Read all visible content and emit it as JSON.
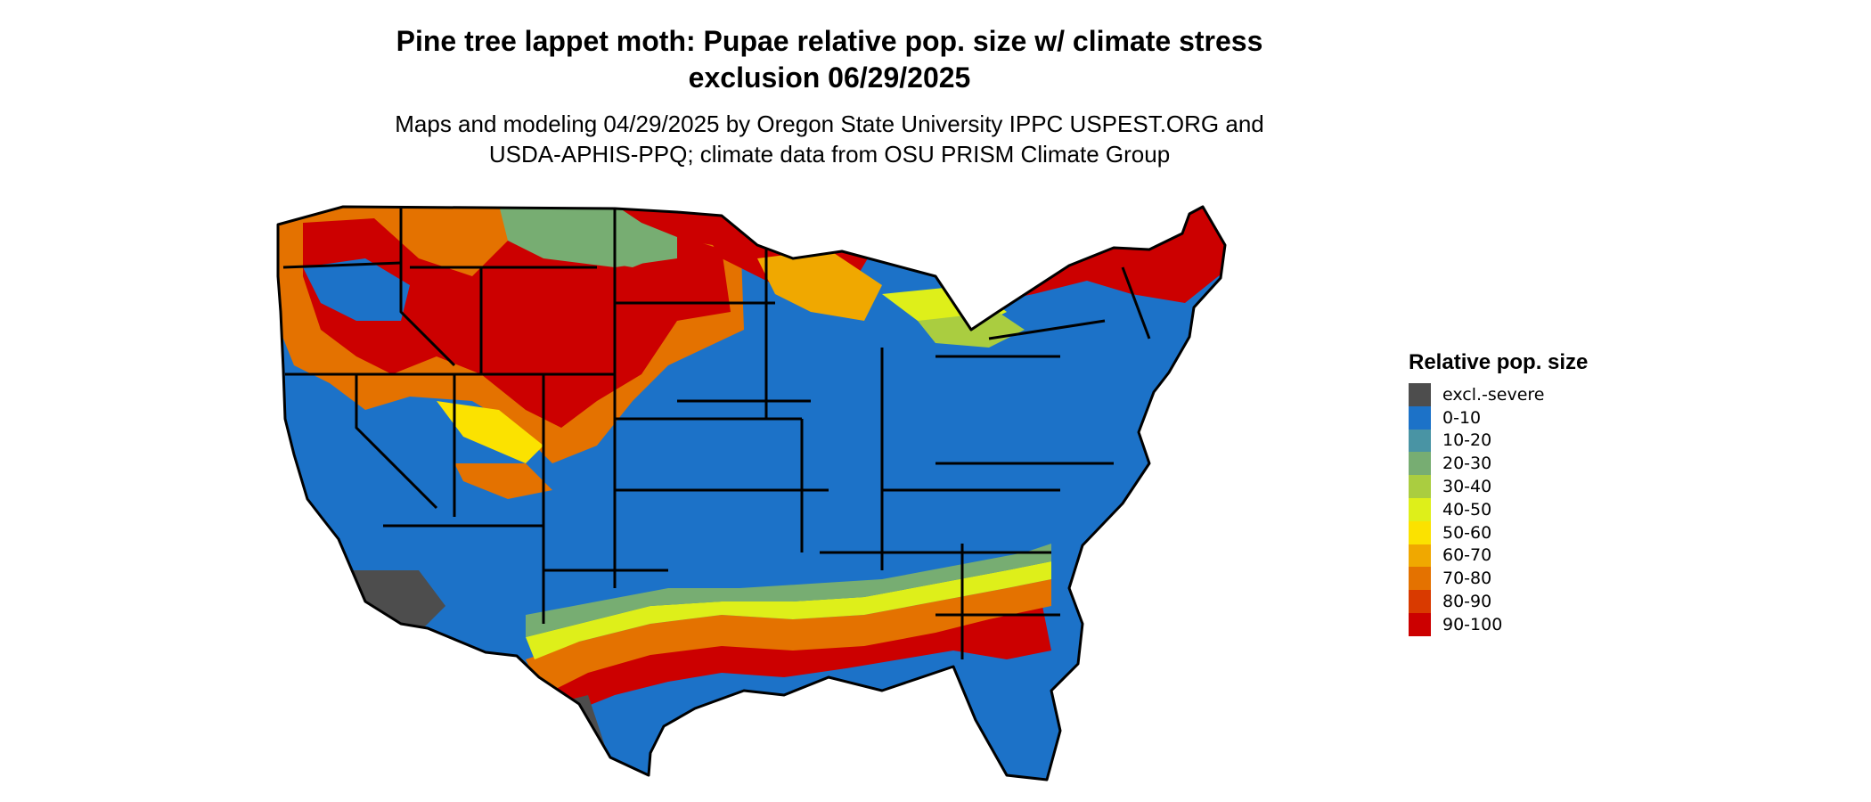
{
  "title": {
    "line1": "Pine tree lappet moth: Pupae relative pop. size w/ climate stress",
    "line2": "exclusion 06/29/2025"
  },
  "subtitle": {
    "line1": "Maps and modeling 04/29/2025 by Oregon State University IPPC USPEST.ORG and",
    "line2": "USDA-APHIS-PPQ; climate data from OSU PRISM Climate Group"
  },
  "legend": {
    "title": "Relative pop. size",
    "items": [
      {
        "label": "excl.-severe",
        "color": "#4d4d4d"
      },
      {
        "label": "0-10",
        "color": "#1c72c8"
      },
      {
        "label": "10-20",
        "color": "#4994a4"
      },
      {
        "label": "20-30",
        "color": "#77ad72"
      },
      {
        "label": "30-40",
        "color": "#aacd40"
      },
      {
        "label": "40-50",
        "color": "#deef1a"
      },
      {
        "label": "50-60",
        "color": "#fbe200"
      },
      {
        "label": "60-70",
        "color": "#f0a800"
      },
      {
        "label": "70-80",
        "color": "#e47200"
      },
      {
        "label": "80-90",
        "color": "#d93a00"
      },
      {
        "label": "90-100",
        "color": "#cc0000"
      }
    ]
  }
}
